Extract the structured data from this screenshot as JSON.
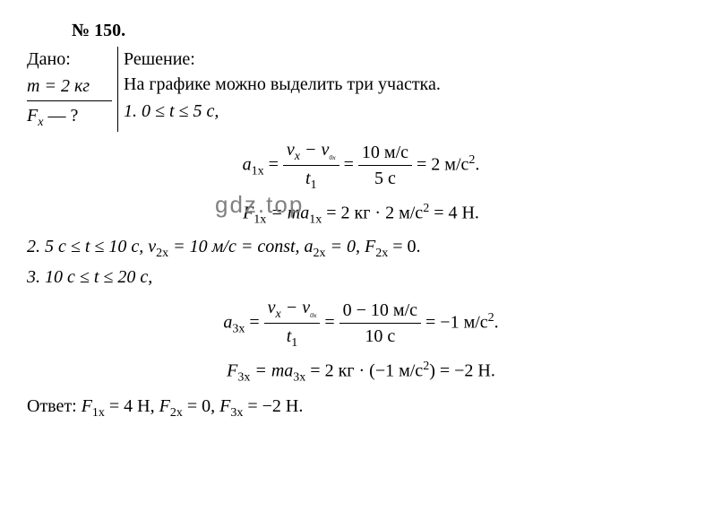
{
  "problem": {
    "number": "№ 150.",
    "given_label": "Дано:",
    "mass_line": "m = 2 кг",
    "find_line_prefix": "F",
    "find_line_sub": "x",
    "find_line_suffix": " — ?",
    "solution_label": "Решение:",
    "intro_text": "На графике можно выделить три участка.",
    "segment1": {
      "range": "1. 0 ≤ t ≤ 5 с,",
      "a_label": "a",
      "a_sub": "1x",
      "eq": " = ",
      "frac1_num_v": "v",
      "frac1_num_vsub": "x",
      "frac1_num_minus": " − v",
      "frac1_num_v0sub": "0x",
      "frac1_den": "t",
      "frac1_den_sub": "1",
      "frac2_num": "10 м/с",
      "frac2_den": "5 с",
      "result": " = 2 м/с",
      "result_sup": "2",
      "result_end": ".",
      "force_prefix": "F",
      "force_sub": "1x",
      "force_eq": " = ma",
      "force_asub": "1x",
      "force_calc": " = 2 кг · 2 м/с",
      "force_sup": "2",
      "force_end": " = 4 Н."
    },
    "segment2": {
      "text_a": "2. 5 с ≤ t ≤ 10 с, v",
      "sub_a": "2x",
      "text_b": " = 10 м/с = const, a",
      "sub_b": "2x",
      "text_c": " = 0, F",
      "sub_c": "2x",
      "text_d": " = 0."
    },
    "segment3": {
      "range": "3. 10 с ≤ t ≤ 20 с,",
      "a_label": "a",
      "a_sub": "3x",
      "eq": " = ",
      "frac1_num_v": "v",
      "frac1_num_vsub": "x",
      "frac1_num_minus": " − v",
      "frac1_num_v0sub": "0x",
      "frac1_den": "t",
      "frac1_den_sub": "1",
      "frac2_num": "0 − 10 м/с",
      "frac2_den": "10 с",
      "result": " = −1 м/с",
      "result_sup": "2",
      "result_end": ".",
      "force_prefix": "F",
      "force_sub": "3x",
      "force_eq": " = ma",
      "force_asub": "3x",
      "force_calc": " = 2 кг · (−1 м/с",
      "force_sup": "2",
      "force_close": ")",
      "force_end": " = −2 Н."
    },
    "answer": {
      "label": "Ответ: ",
      "f1_pre": "F",
      "f1_sub": "1x",
      "f1_val": " = 4 Н, ",
      "f2_pre": "F",
      "f2_sub": "2x",
      "f2_val": " = 0, ",
      "f3_pre": "F",
      "f3_sub": "3x",
      "f3_val": " = −2 Н."
    }
  },
  "watermark": "gdz.top"
}
